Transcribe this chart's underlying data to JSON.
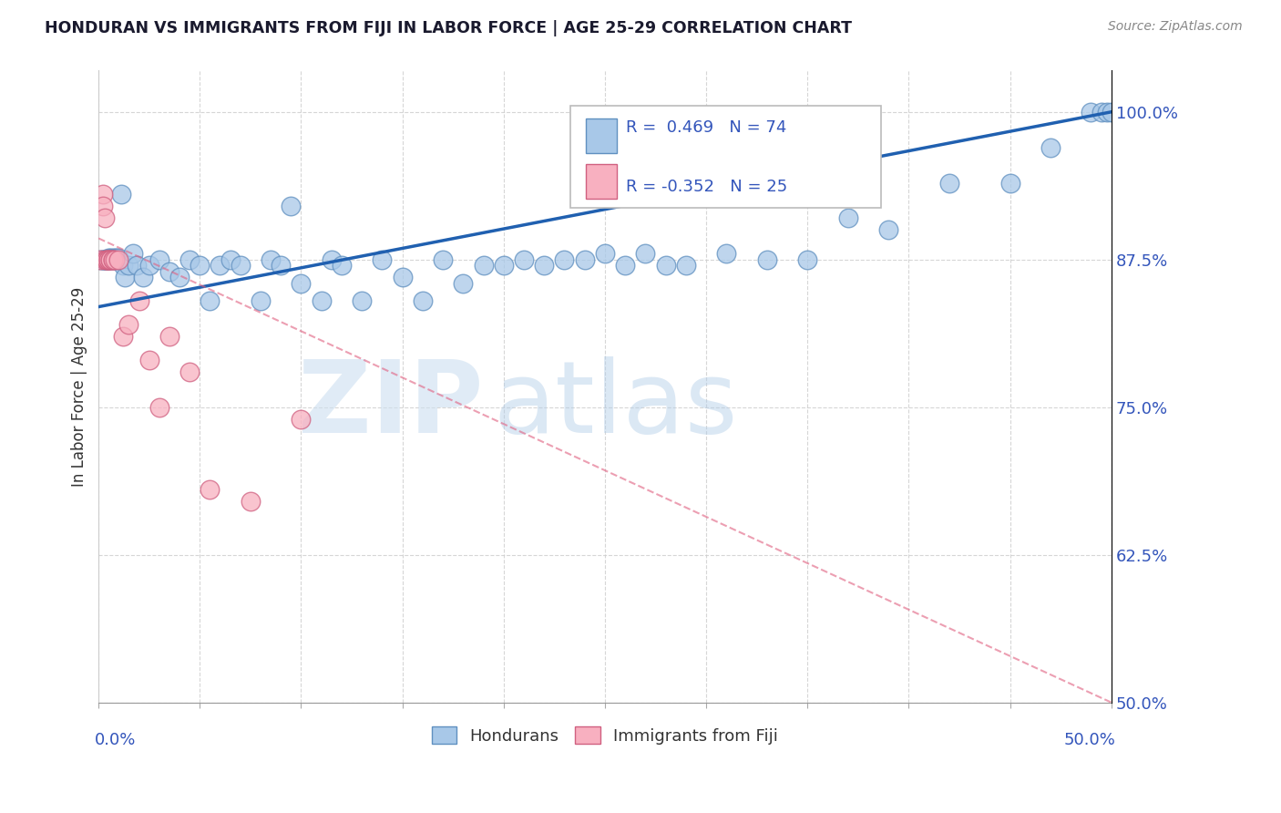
{
  "title": "HONDURAN VS IMMIGRANTS FROM FIJI IN LABOR FORCE | AGE 25-29 CORRELATION CHART",
  "source": "Source: ZipAtlas.com",
  "ylabel": "In Labor Force | Age 25-29",
  "ylabel_right_ticks": [
    "100.0%",
    "87.5%",
    "75.0%",
    "62.5%",
    "50.0%"
  ],
  "ylabel_right_vals": [
    1.0,
    0.875,
    0.75,
    0.625,
    0.5
  ],
  "xlim": [
    0.0,
    0.5
  ],
  "ylim": [
    0.5,
    1.035
  ],
  "blue_R": 0.469,
  "blue_N": 74,
  "pink_R": -0.352,
  "pink_N": 25,
  "blue_color": "#a8c8e8",
  "blue_edge_color": "#6090c0",
  "blue_line_color": "#2060b0",
  "pink_color": "#f8b0c0",
  "pink_edge_color": "#d06080",
  "pink_line_color": "#e06080",
  "blue_scatter_x": [
    0.001,
    0.002,
    0.002,
    0.003,
    0.003,
    0.004,
    0.004,
    0.005,
    0.005,
    0.005,
    0.006,
    0.006,
    0.007,
    0.007,
    0.008,
    0.008,
    0.009,
    0.009,
    0.01,
    0.01,
    0.011,
    0.012,
    0.013,
    0.015,
    0.017,
    0.019,
    0.022,
    0.025,
    0.03,
    0.035,
    0.04,
    0.045,
    0.05,
    0.055,
    0.06,
    0.065,
    0.07,
    0.08,
    0.085,
    0.09,
    0.095,
    0.1,
    0.11,
    0.115,
    0.12,
    0.13,
    0.14,
    0.15,
    0.16,
    0.17,
    0.18,
    0.19,
    0.2,
    0.21,
    0.22,
    0.23,
    0.24,
    0.25,
    0.26,
    0.27,
    0.28,
    0.29,
    0.31,
    0.33,
    0.35,
    0.37,
    0.39,
    0.42,
    0.45,
    0.47,
    0.49,
    0.495,
    0.498,
    0.5
  ],
  "blue_scatter_y": [
    0.875,
    0.875,
    0.875,
    0.875,
    0.875,
    0.875,
    0.875,
    0.875,
    0.875,
    0.876,
    0.875,
    0.876,
    0.875,
    0.876,
    0.875,
    0.876,
    0.875,
    0.876,
    0.875,
    0.876,
    0.93,
    0.87,
    0.86,
    0.87,
    0.88,
    0.87,
    0.86,
    0.87,
    0.875,
    0.865,
    0.86,
    0.875,
    0.87,
    0.84,
    0.87,
    0.875,
    0.87,
    0.84,
    0.875,
    0.87,
    0.92,
    0.855,
    0.84,
    0.875,
    0.87,
    0.84,
    0.875,
    0.86,
    0.84,
    0.875,
    0.855,
    0.87,
    0.87,
    0.875,
    0.87,
    0.875,
    0.875,
    0.88,
    0.87,
    0.88,
    0.87,
    0.87,
    0.88,
    0.875,
    0.875,
    0.91,
    0.9,
    0.94,
    0.94,
    0.97,
    1.0,
    1.0,
    1.0,
    1.0
  ],
  "pink_scatter_x": [
    0.001,
    0.002,
    0.002,
    0.003,
    0.003,
    0.004,
    0.004,
    0.005,
    0.005,
    0.006,
    0.006,
    0.007,
    0.007,
    0.008,
    0.01,
    0.012,
    0.015,
    0.02,
    0.025,
    0.03,
    0.035,
    0.045,
    0.055,
    0.075,
    0.1
  ],
  "pink_scatter_y": [
    0.875,
    0.93,
    0.92,
    0.91,
    0.875,
    0.875,
    0.875,
    0.875,
    0.875,
    0.875,
    0.875,
    0.875,
    0.875,
    0.875,
    0.875,
    0.81,
    0.82,
    0.84,
    0.79,
    0.75,
    0.81,
    0.78,
    0.68,
    0.67,
    0.74
  ],
  "blue_line_x0": 0.0,
  "blue_line_y0": 0.835,
  "blue_line_x1": 0.5,
  "blue_line_y1": 1.0,
  "pink_line_x0": 0.0,
  "pink_line_y0": 0.893,
  "pink_line_x1": 0.5,
  "pink_line_y1": 0.5
}
